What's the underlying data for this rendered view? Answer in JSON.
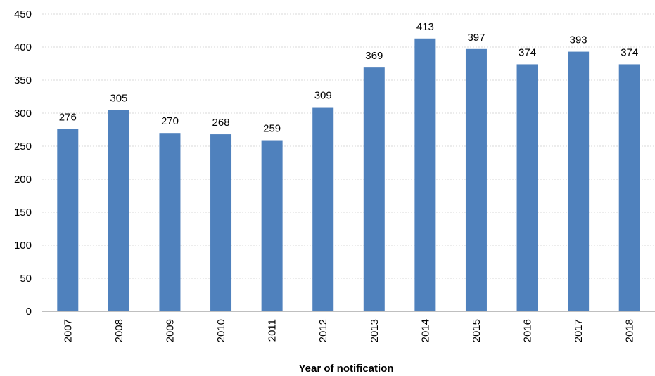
{
  "chart_data": {
    "type": "bar",
    "title": "",
    "xlabel": "Year of notification",
    "ylabel": "",
    "categories": [
      "2007",
      "2008",
      "2009",
      "2010",
      "2011",
      "2012",
      "2013",
      "2014",
      "2015",
      "2016",
      "2017",
      "2018"
    ],
    "values": [
      276,
      305,
      270,
      268,
      259,
      309,
      369,
      413,
      397,
      374,
      393,
      374
    ],
    "ylim": [
      0,
      450
    ],
    "yticks": [
      0,
      50,
      100,
      150,
      200,
      250,
      300,
      350,
      400,
      450
    ],
    "grid": true,
    "legend": "none",
    "data_labels": true,
    "bar_color": "#4f81bd",
    "grid_color": "#d9d9d9"
  }
}
